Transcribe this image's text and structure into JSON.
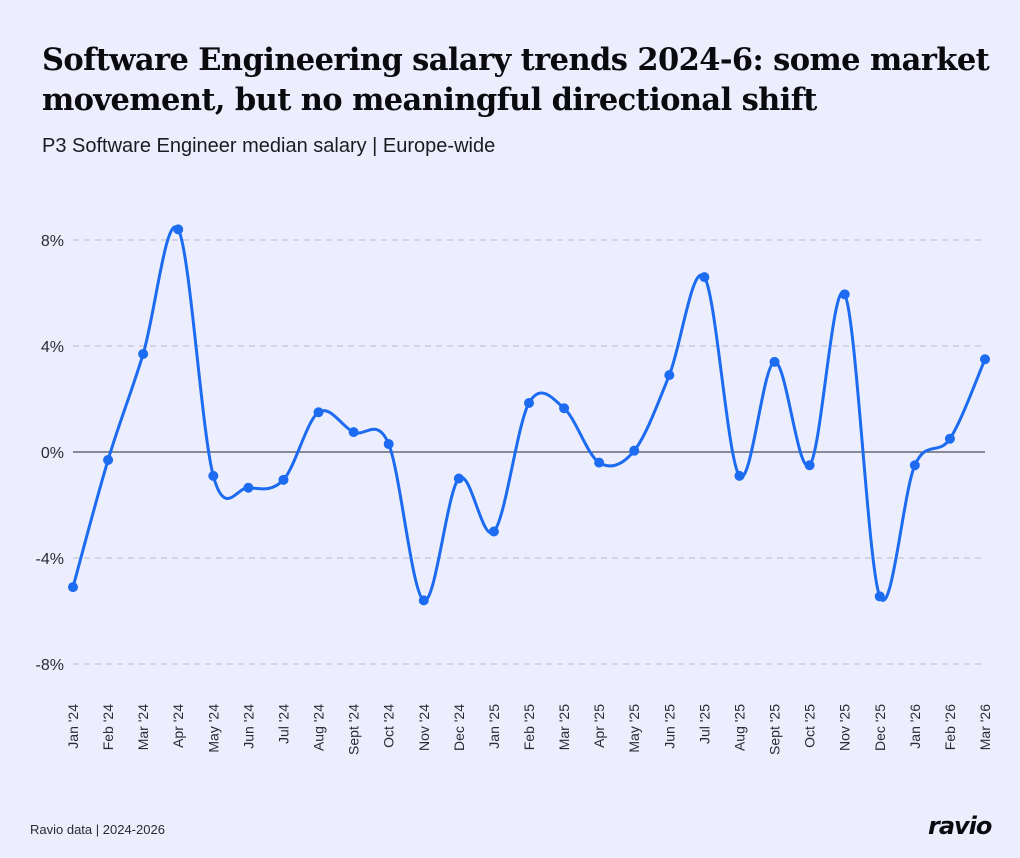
{
  "title": "Software Engineering salary trends 2024-6: some market movement, but no meaningful directional shift",
  "subtitle": "P3 Software Engineer median salary | Europe-wide",
  "footer": {
    "source": "Ravio data | 2024-2026",
    "logo": "ravio"
  },
  "colors": {
    "line": "#1c6bf0",
    "background": "#eceefd",
    "grid": "#b9bccb",
    "zero_line": "#4a4d5c"
  },
  "chart_data": {
    "type": "line",
    "title": "Software Engineering salary trends 2024-6: some market movement, but no meaningful directional shift",
    "subtitle": "P3 Software Engineer median salary | Europe-wide",
    "xlabel": "",
    "ylabel": "",
    "categories": [
      "Jan '24",
      "Feb '24",
      "Mar '24",
      "Apr '24",
      "May '24",
      "Jun '24",
      "Jul '24",
      "Aug '24",
      "Sept '24",
      "Oct '24",
      "Nov '24",
      "Dec '24",
      "Jan '25",
      "Feb '25",
      "Mar '25",
      "Apr '25",
      "May '25",
      "Jun '25",
      "Jul '25",
      "Aug '25",
      "Sept '25",
      "Oct '25",
      "Nov '25",
      "Dec '25",
      "Jan '26",
      "Feb '26",
      "Mar '26"
    ],
    "values": [
      -5.1,
      -0.3,
      3.7,
      8.4,
      -0.9,
      -1.35,
      -1.05,
      1.5,
      0.75,
      0.3,
      -5.6,
      -1.0,
      -3.0,
      1.85,
      1.65,
      -0.4,
      0.05,
      2.9,
      6.6,
      -0.9,
      3.4,
      -0.5,
      5.95,
      -5.45,
      -0.5,
      0.5,
      3.5
    ],
    "ylim": [
      -8,
      8
    ],
    "yticks": [
      8,
      4,
      0,
      -4,
      -8
    ],
    "ytick_labels": [
      "8%",
      "4%",
      "0%",
      "-4%",
      "-8%"
    ],
    "grid": "horizontal dashed",
    "legend": "none"
  }
}
